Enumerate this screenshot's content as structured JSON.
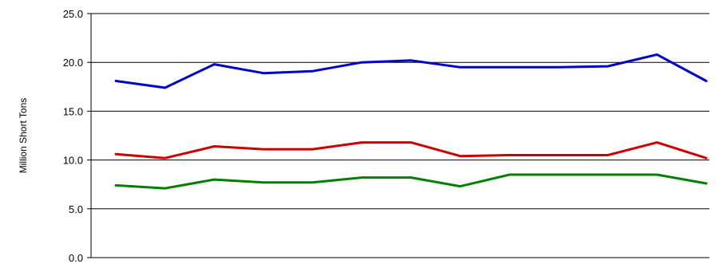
{
  "chart_data": {
    "type": "line",
    "title": "",
    "xlabel": "",
    "ylabel": "Million Short Tons",
    "ylim": [
      0,
      25
    ],
    "yticks": [
      "0.0",
      "5.0",
      "10.0",
      "15.0",
      "20.0",
      "25.0"
    ],
    "ytick_values": [
      0,
      5,
      10,
      15,
      20,
      25
    ],
    "grid": true,
    "legend": "none",
    "x": [
      1,
      2,
      3,
      4,
      5,
      6,
      7,
      8,
      9,
      10,
      11,
      12,
      13
    ],
    "series": [
      {
        "color": "#0000cc",
        "values": [
          18.1,
          17.4,
          19.8,
          18.9,
          19.1,
          20.0,
          20.2,
          19.5,
          19.5,
          19.5,
          19.6,
          20.8,
          18.1
        ]
      },
      {
        "color": "#cc0000",
        "values": [
          10.6,
          10.2,
          11.4,
          11.1,
          11.1,
          11.8,
          11.8,
          10.4,
          10.5,
          10.5,
          10.5,
          11.8,
          10.2
        ]
      },
      {
        "color": "#008000",
        "values": [
          7.4,
          7.1,
          8.0,
          7.7,
          7.7,
          8.2,
          8.2,
          7.3,
          8.5,
          8.5,
          8.5,
          8.5,
          7.6
        ]
      }
    ]
  }
}
